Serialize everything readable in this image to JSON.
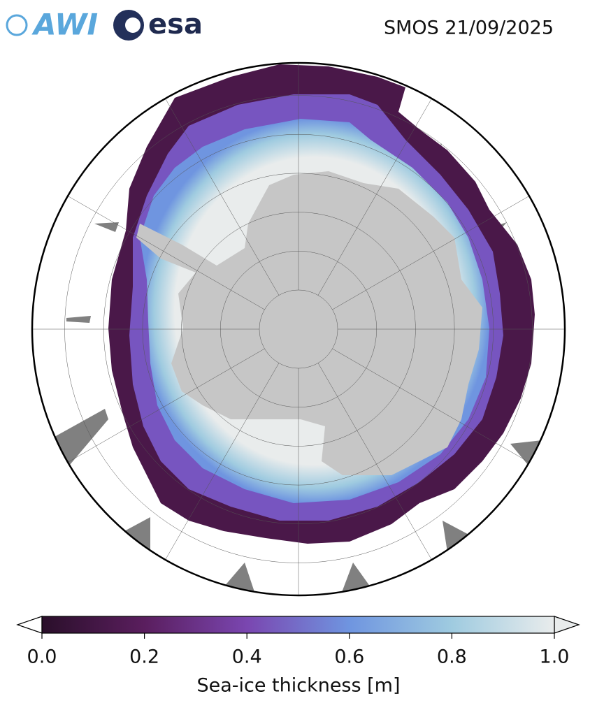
{
  "header": {
    "title": "SMOS 21/09/2025",
    "logos": [
      "AWI",
      "esa"
    ]
  },
  "colorbar": {
    "label": "Sea-ice thickness [m]",
    "lim": [
      0,
      1
    ],
    "ticks": [
      {
        "value": 0,
        "label": "0.0"
      },
      0.2,
      0.4,
      0.6,
      0.8,
      {
        "value": 1,
        "label": "1.0"
      }
    ],
    "colors": [
      "#2a0f2a",
      "#5a1e5e",
      "#7a46b0",
      "#6f95e0",
      "#9fcbe0",
      "#e9ecec"
    ]
  }
}
